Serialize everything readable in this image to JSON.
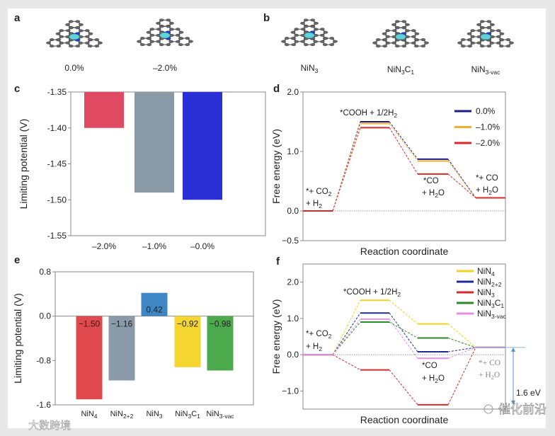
{
  "panels": {
    "a": {
      "label": "a",
      "structures": [
        [
          [
            "0.0%",
            ""
          ]
        ],
        [
          [
            "–2.0%",
            ""
          ]
        ]
      ]
    },
    "b": {
      "label": "b",
      "structures": [
        [
          [
            "NiN",
            ""
          ],
          [
            "3",
            "sub"
          ]
        ],
        [
          [
            "NiN",
            ""
          ],
          [
            "3",
            "sub"
          ],
          [
            "C",
            ""
          ],
          [
            "1",
            "sub"
          ]
        ],
        [
          [
            "NiN",
            ""
          ],
          [
            "3-vac",
            "sub"
          ]
        ]
      ]
    },
    "c": {
      "label": "c"
    },
    "d": {
      "label": "d"
    },
    "e": {
      "label": "e"
    },
    "f": {
      "label": "f"
    }
  },
  "colors": {
    "frame": "#e8e8e8",
    "ni": "#5fd3dc",
    "n": "#1f3fcf",
    "c": "#666666"
  },
  "watermarks": {
    "left": "大数跨境",
    "right": "催化前沿"
  },
  "chart_data": [
    {
      "id": "c",
      "type": "bar",
      "ylabel": "Limiting potential (V)",
      "xlabel": "",
      "ylim": [
        -1.55,
        -1.35
      ],
      "yticks": [
        "-1.35",
        "-1.40",
        "-1.45",
        "-1.50",
        "-1.55"
      ],
      "categories": [
        "–2.0%",
        "–1.0%",
        "–0.0%"
      ],
      "values": [
        -1.4,
        -1.49,
        -1.5
      ],
      "colors": [
        "#e04a62",
        "#8a99a6",
        "#2b2fd6"
      ]
    },
    {
      "id": "d",
      "type": "line",
      "xlabel": "Reaction coordinate",
      "ylabel": "Free energy (eV)",
      "ylim": [
        -0.5,
        2.0
      ],
      "yticks": [
        "2.0",
        "1.0",
        "0.0",
        "−0.5"
      ],
      "ytick_values": [
        2.0,
        1.0,
        0.0,
        -0.5
      ],
      "steps": [
        "*+ CO2 + H2",
        "*COOH + 1/2H2",
        "*CO + H2O",
        "*+ CO + H2O"
      ],
      "series": [
        {
          "name": "0.0%",
          "color": "#1a1a8c",
          "values": [
            0,
            1.5,
            0.87,
            0.22
          ]
        },
        {
          "name": "–1.0%",
          "color": "#f0b02a",
          "values": [
            0,
            1.47,
            0.84,
            0.22
          ]
        },
        {
          "name": "–2.0%",
          "color": "#d8282a",
          "values": [
            0,
            1.4,
            0.62,
            0.22
          ]
        }
      ],
      "legend": "top-right",
      "annotations": {
        "s1": [
          [
            [
              "*+ CO",
              ""
            ],
            [
              "2",
              "sub"
            ]
          ],
          [
            [
              "+ H",
              ""
            ],
            [
              "2",
              "sub"
            ]
          ]
        ],
        "s2": [
          [
            [
              "*COOH + 1/2H",
              ""
            ],
            [
              "2",
              "sub"
            ]
          ]
        ],
        "s3": [
          [
            [
              "*CO",
              ""
            ]
          ],
          [
            [
              "+ H",
              ""
            ],
            [
              "2",
              "sub"
            ],
            [
              "O",
              ""
            ]
          ]
        ],
        "s4": [
          [
            [
              "*+ CO",
              ""
            ]
          ],
          [
            [
              "+ H",
              ""
            ],
            [
              "2",
              "sub"
            ],
            [
              "O",
              ""
            ]
          ]
        ]
      }
    },
    {
      "id": "e",
      "type": "bar",
      "ylabel": "Limiting potential (V)",
      "xlabel": "",
      "ylim": [
        -1.6,
        0.8
      ],
      "yticks": [
        "0.8",
        "0.0",
        "-0.8",
        "-1.6"
      ],
      "ytick_values": [
        0.8,
        0.0,
        -0.8,
        -1.6
      ],
      "categories": [
        [
          [
            "NiN",
            ""
          ],
          [
            "4",
            "sub"
          ]
        ],
        [
          [
            "NiN",
            ""
          ],
          [
            "2+2",
            "sub"
          ]
        ],
        [
          [
            "NiN",
            ""
          ],
          [
            "3",
            "sub"
          ]
        ],
        [
          [
            "NiN",
            ""
          ],
          [
            "3",
            "sub"
          ],
          [
            "C",
            ""
          ],
          [
            "1",
            "sub"
          ]
        ],
        [
          [
            "NiN",
            ""
          ],
          [
            "3-vac",
            "sub"
          ]
        ]
      ],
      "values": [
        -1.5,
        -1.16,
        0.42,
        -0.92,
        -0.98
      ],
      "data_labels": [
        "−1.50",
        "−1.16",
        "0.42",
        "−0.92",
        "−0.98"
      ],
      "colors": [
        "#e04a4f",
        "#8b9aa8",
        "#3f86c4",
        "#f5d530",
        "#4caa4c"
      ]
    },
    {
      "id": "f",
      "type": "line",
      "xlabel": "Reaction coordinate",
      "ylabel": "Free energy (eV)",
      "ylim": [
        -1.5,
        2.5
      ],
      "yticks": [
        "2.0",
        "1.0",
        "0.0",
        "−1.0"
      ],
      "ytick_values": [
        2.0,
        1.0,
        0.0,
        -1.0
      ],
      "series": [
        {
          "name": [
            [
              "NiN",
              ""
            ],
            [
              "4",
              "sub"
            ]
          ],
          "color": "#f2d21e",
          "values": [
            0,
            1.5,
            0.85,
            0.2
          ]
        },
        {
          "name": [
            [
              "NiN",
              ""
            ],
            [
              "2+2",
              "sub"
            ]
          ],
          "color": "#1f2a9a",
          "values": [
            0,
            1.15,
            0.08,
            0.2
          ]
        },
        {
          "name": [
            [
              "NiN",
              ""
            ],
            [
              "3",
              "sub"
            ]
          ],
          "color": "#d8282a",
          "values": [
            0,
            -0.42,
            -1.38,
            0.2
          ]
        },
        {
          "name": [
            [
              "NiN",
              ""
            ],
            [
              "3",
              "sub"
            ],
            [
              "C",
              ""
            ],
            [
              "1",
              "sub"
            ]
          ],
          "color": "#2a8a2a",
          "values": [
            0,
            0.9,
            0.46,
            0.2
          ]
        },
        {
          "name": [
            [
              "NiN",
              ""
            ],
            [
              "3-vac",
              "sub"
            ]
          ],
          "color": "#e48fe6",
          "values": [
            0,
            0.98,
            -0.1,
            0.2
          ]
        }
      ],
      "legend": "top-right",
      "annotations": {
        "s1": [
          [
            [
              "*+ CO",
              ""
            ],
            [
              "2",
              "sub"
            ]
          ],
          [
            [
              "+ H",
              ""
            ],
            [
              "2",
              "sub"
            ]
          ]
        ],
        "s2": [
          [
            [
              "*COOH + 1/2H",
              ""
            ],
            [
              "2",
              "sub"
            ]
          ]
        ],
        "s3": [
          [
            [
              "*CO",
              ""
            ]
          ],
          [
            [
              "+ H",
              ""
            ],
            [
              "2",
              "sub"
            ],
            [
              "O",
              ""
            ]
          ]
        ],
        "s4": [
          [
            [
              "*+ CO",
              ""
            ]
          ],
          [
            [
              "+ H",
              ""
            ],
            [
              "2",
              "sub"
            ],
            [
              "O",
              ""
            ]
          ]
        ],
        "gap": "1.6 eV"
      }
    }
  ]
}
